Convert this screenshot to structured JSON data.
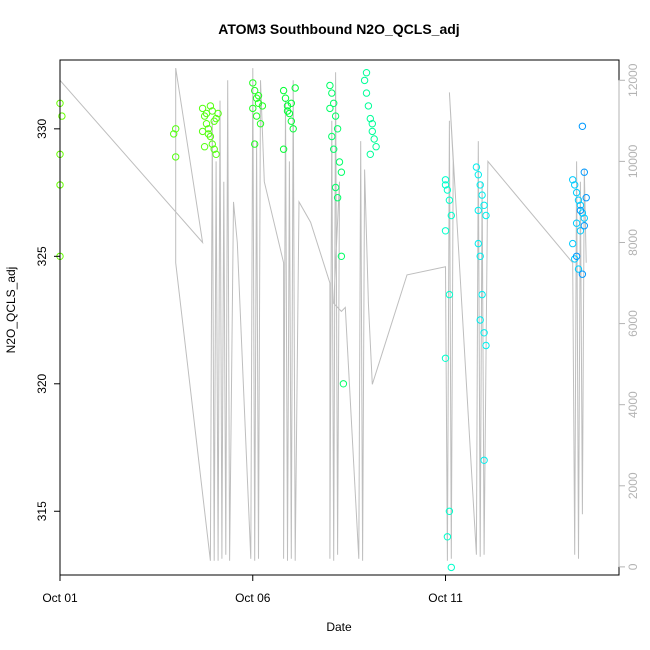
{
  "chart_data": {
    "type": "scatter",
    "title": "ATOM3 Southbound N2O_QCLS_adj",
    "xlabel": "Date",
    "ylabel": "N2O_QCLS_adj",
    "xlim": [
      0,
      14.5
    ],
    "ylim": [
      312.5,
      332.7
    ],
    "x_ticks": [
      {
        "value": 0,
        "label": "Oct 01"
      },
      {
        "value": 5,
        "label": "Oct 06"
      },
      {
        "value": 10,
        "label": "Oct 11"
      }
    ],
    "y_ticks": [
      315,
      320,
      325,
      330
    ],
    "right_axis": {
      "series": "altitude",
      "ylim": [
        -200,
        12500
      ],
      "ticks": [
        0,
        2000,
        4000,
        6000,
        8000,
        10000,
        12000
      ],
      "color": "#b3b3b3"
    },
    "grid": false,
    "legend": "none",
    "color_scale": [
      "#66ff00",
      "#00ff33",
      "#00ffbb",
      "#00e5ff",
      "#0099ff"
    ],
    "altitude_track": [
      [
        0.0,
        12000
      ],
      [
        0.0,
        1500
      ],
      [
        0.0,
        12000
      ],
      [
        3.7,
        8000
      ],
      [
        3.0,
        12300
      ],
      [
        3.0,
        7500
      ],
      [
        3.9,
        150
      ],
      [
        3.95,
        11000
      ],
      [
        4.0,
        150
      ],
      [
        4.05,
        10000
      ],
      [
        4.1,
        150
      ],
      [
        4.15,
        11500
      ],
      [
        4.2,
        200
      ],
      [
        4.25,
        9500
      ],
      [
        4.3,
        300
      ],
      [
        4.35,
        12000
      ],
      [
        4.4,
        150
      ],
      [
        4.5,
        9000
      ],
      [
        4.6,
        8000
      ],
      [
        4.95,
        200
      ],
      [
        5.0,
        12300
      ],
      [
        5.05,
        150
      ],
      [
        5.1,
        10500
      ],
      [
        5.15,
        200
      ],
      [
        5.2,
        12000
      ],
      [
        5.3,
        9500
      ],
      [
        5.8,
        7500
      ],
      [
        5.8,
        200
      ],
      [
        5.85,
        11500
      ],
      [
        5.9,
        150
      ],
      [
        5.95,
        10000
      ],
      [
        6.0,
        200
      ],
      [
        6.05,
        12000
      ],
      [
        6.1,
        150
      ],
      [
        6.2,
        9000
      ],
      [
        6.5,
        8500
      ],
      [
        7.0,
        7000
      ],
      [
        7.0,
        200
      ],
      [
        7.05,
        11000
      ],
      [
        7.1,
        150
      ],
      [
        7.15,
        12200
      ],
      [
        7.2,
        300
      ],
      [
        7.25,
        9500
      ],
      [
        7.1,
        6500
      ],
      [
        7.3,
        6300
      ],
      [
        7.4,
        6400
      ],
      [
        7.75,
        200
      ],
      [
        7.8,
        10500
      ],
      [
        7.85,
        150
      ],
      [
        7.9,
        9800
      ],
      [
        8.0,
        6500
      ],
      [
        8.1,
        4500
      ],
      [
        9.0,
        7200
      ],
      [
        10.0,
        7400
      ],
      [
        10.05,
        150
      ],
      [
        10.1,
        11000
      ],
      [
        10.15,
        200
      ],
      [
        10.2,
        10000
      ],
      [
        10.1,
        11700
      ],
      [
        10.8,
        300
      ],
      [
        10.85,
        10500
      ],
      [
        10.9,
        250
      ],
      [
        10.95,
        9500
      ],
      [
        11.0,
        300
      ],
      [
        11.1,
        10000
      ],
      [
        13.3,
        7500
      ],
      [
        13.35,
        300
      ],
      [
        13.4,
        10000
      ],
      [
        13.45,
        200
      ],
      [
        13.5,
        9500
      ],
      [
        13.55,
        1300
      ],
      [
        13.6,
        9800
      ],
      [
        13.65,
        7500
      ]
    ],
    "series": [
      {
        "color": "#66ff00",
        "points": [
          [
            0.0,
            331.0
          ],
          [
            0.05,
            330.5
          ],
          [
            0.0,
            329.0
          ],
          [
            0.0,
            327.8
          ],
          [
            0.0,
            325.0
          ]
        ]
      },
      {
        "color": "#55ff11",
        "points": [
          [
            3.0,
            330.0
          ],
          [
            2.95,
            329.8
          ],
          [
            3.0,
            328.9
          ],
          [
            3.7,
            330.8
          ],
          [
            3.75,
            330.5
          ],
          [
            3.8,
            330.2
          ],
          [
            3.85,
            330.0
          ],
          [
            3.9,
            329.7
          ],
          [
            3.95,
            329.4
          ],
          [
            4.0,
            329.2
          ],
          [
            4.05,
            329.0
          ],
          [
            3.7,
            329.9
          ],
          [
            3.8,
            330.6
          ],
          [
            3.9,
            330.9
          ],
          [
            4.0,
            330.3
          ],
          [
            4.1,
            330.6
          ],
          [
            3.75,
            329.3
          ],
          [
            3.85,
            329.8
          ],
          [
            3.95,
            330.7
          ],
          [
            4.05,
            330.4
          ]
        ]
      },
      {
        "color": "#22ff22",
        "points": [
          [
            5.0,
            331.8
          ],
          [
            5.05,
            331.5
          ],
          [
            5.1,
            331.2
          ],
          [
            5.15,
            331.0
          ],
          [
            5.0,
            330.8
          ],
          [
            5.1,
            330.5
          ],
          [
            5.2,
            330.2
          ],
          [
            5.05,
            329.4
          ],
          [
            5.15,
            331.3
          ],
          [
            5.25,
            330.9
          ]
        ]
      },
      {
        "color": "#00ff33",
        "points": [
          [
            5.8,
            331.5
          ],
          [
            5.85,
            331.2
          ],
          [
            5.9,
            330.9
          ],
          [
            5.95,
            330.6
          ],
          [
            6.0,
            330.3
          ],
          [
            6.05,
            330.0
          ],
          [
            6.1,
            331.6
          ],
          [
            5.8,
            329.2
          ],
          [
            5.9,
            330.7
          ],
          [
            6.0,
            331.0
          ]
        ]
      },
      {
        "color": "#00ff66",
        "points": [
          [
            7.0,
            331.7
          ],
          [
            7.05,
            331.4
          ],
          [
            7.1,
            331.0
          ],
          [
            7.15,
            330.5
          ],
          [
            7.2,
            330.0
          ],
          [
            7.1,
            329.2
          ],
          [
            7.25,
            328.7
          ],
          [
            7.3,
            328.3
          ],
          [
            7.15,
            327.7
          ],
          [
            7.2,
            327.3
          ],
          [
            7.3,
            325.0
          ],
          [
            7.35,
            320.0
          ],
          [
            7.0,
            330.8
          ],
          [
            7.05,
            329.7
          ]
        ]
      },
      {
        "color": "#00ff99",
        "points": [
          [
            7.9,
            331.9
          ],
          [
            7.95,
            331.4
          ],
          [
            8.0,
            330.9
          ],
          [
            8.05,
            330.4
          ],
          [
            8.1,
            329.9
          ],
          [
            8.15,
            329.6
          ],
          [
            8.2,
            329.3
          ],
          [
            7.95,
            332.2
          ],
          [
            8.05,
            329.0
          ],
          [
            8.1,
            330.2
          ]
        ]
      },
      {
        "color": "#00ffcc",
        "points": [
          [
            10.0,
            328.0
          ],
          [
            10.05,
            327.6
          ],
          [
            10.1,
            327.2
          ],
          [
            10.15,
            326.6
          ],
          [
            10.0,
            326.0
          ],
          [
            10.1,
            323.5
          ],
          [
            10.0,
            321.0
          ],
          [
            10.1,
            315.0
          ],
          [
            10.05,
            314.0
          ],
          [
            10.15,
            312.8
          ],
          [
            10.0,
            327.8
          ]
        ]
      },
      {
        "color": "#00eeee",
        "points": [
          [
            10.8,
            328.5
          ],
          [
            10.85,
            328.2
          ],
          [
            10.9,
            327.8
          ],
          [
            10.95,
            327.4
          ],
          [
            11.0,
            327.0
          ],
          [
            11.05,
            326.6
          ],
          [
            10.85,
            325.5
          ],
          [
            10.9,
            325.0
          ],
          [
            10.95,
            323.5
          ],
          [
            11.0,
            322.0
          ],
          [
            11.05,
            321.5
          ],
          [
            10.9,
            322.5
          ],
          [
            11.0,
            317.0
          ],
          [
            10.85,
            326.8
          ]
        ]
      },
      {
        "color": "#00ccff",
        "points": [
          [
            13.3,
            328.0
          ],
          [
            13.35,
            327.8
          ],
          [
            13.4,
            327.5
          ],
          [
            13.45,
            327.2
          ],
          [
            13.5,
            327.0
          ],
          [
            13.55,
            326.7
          ],
          [
            13.6,
            326.5
          ],
          [
            13.4,
            326.3
          ],
          [
            13.5,
            326.0
          ],
          [
            13.3,
            325.5
          ],
          [
            13.35,
            324.9
          ],
          [
            13.45,
            324.5
          ]
        ]
      },
      {
        "color": "#0099ff",
        "points": [
          [
            13.55,
            330.1
          ],
          [
            13.6,
            328.3
          ],
          [
            13.65,
            327.3
          ],
          [
            13.5,
            326.8
          ],
          [
            13.6,
            326.2
          ],
          [
            13.4,
            325.0
          ],
          [
            13.55,
            324.3
          ]
        ]
      }
    ]
  }
}
